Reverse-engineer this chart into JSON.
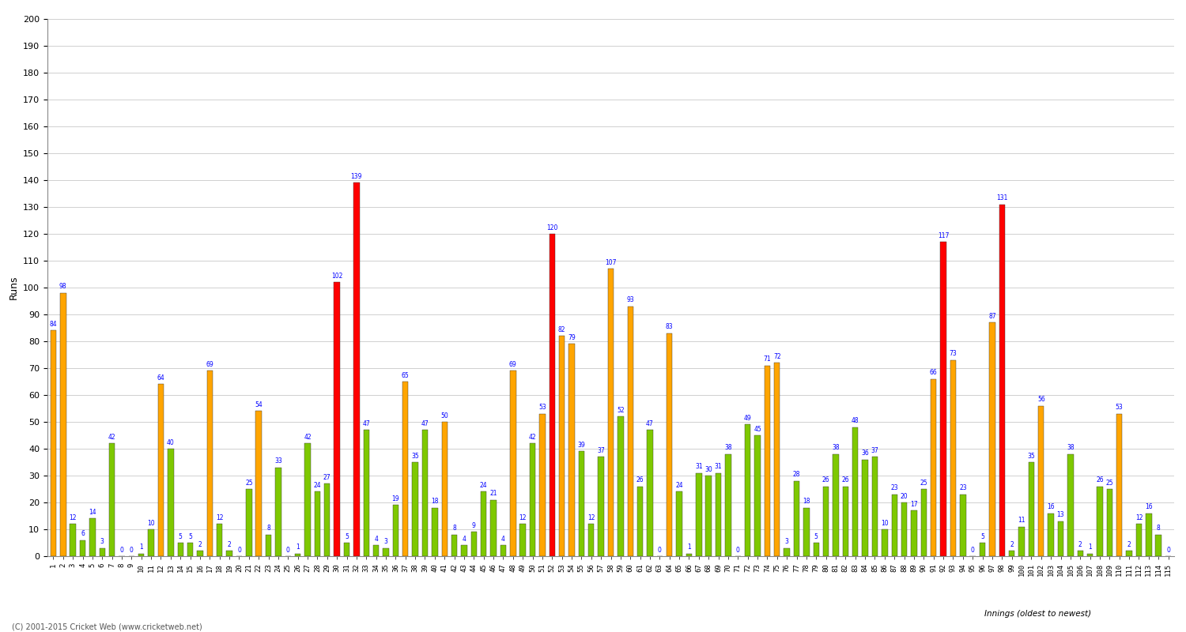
{
  "title": "",
  "xlabel": "Innings (oldest to newest)",
  "ylabel": "Runs",
  "ylim": [
    0,
    200
  ],
  "yticks": [
    0,
    10,
    20,
    30,
    40,
    50,
    60,
    70,
    80,
    90,
    100,
    110,
    120,
    130,
    140,
    150,
    160,
    170,
    180,
    190,
    200
  ],
  "background_color": "#ffffff",
  "grid_color": "#d0d0d0",
  "bar_color_orange": "#ffa500",
  "bar_color_green": "#7ec800",
  "bar_color_red": "#ff0000",
  "innings_data": [
    {
      "inning": 1,
      "runs": 84,
      "color": "orange"
    },
    {
      "inning": 2,
      "runs": 98,
      "color": "orange"
    },
    {
      "inning": 3,
      "runs": 12,
      "color": "green"
    },
    {
      "inning": 4,
      "runs": 6,
      "color": "green"
    },
    {
      "inning": 5,
      "runs": 14,
      "color": "green"
    },
    {
      "inning": 6,
      "runs": 3,
      "color": "green"
    },
    {
      "inning": 7,
      "runs": 42,
      "color": "green"
    },
    {
      "inning": 8,
      "runs": 0,
      "color": "green"
    },
    {
      "inning": 9,
      "runs": 0,
      "color": "green"
    },
    {
      "inning": 10,
      "runs": 1,
      "color": "green"
    },
    {
      "inning": 11,
      "runs": 10,
      "color": "green"
    },
    {
      "inning": 12,
      "runs": 64,
      "color": "orange"
    },
    {
      "inning": 13,
      "runs": 40,
      "color": "green"
    },
    {
      "inning": 14,
      "runs": 5,
      "color": "green"
    },
    {
      "inning": 15,
      "runs": 5,
      "color": "green"
    },
    {
      "inning": 16,
      "runs": 2,
      "color": "green"
    },
    {
      "inning": 17,
      "runs": 69,
      "color": "orange"
    },
    {
      "inning": 18,
      "runs": 12,
      "color": "green"
    },
    {
      "inning": 19,
      "runs": 2,
      "color": "green"
    },
    {
      "inning": 20,
      "runs": 0,
      "color": "green"
    },
    {
      "inning": 21,
      "runs": 25,
      "color": "green"
    },
    {
      "inning": 22,
      "runs": 54,
      "color": "orange"
    },
    {
      "inning": 23,
      "runs": 8,
      "color": "green"
    },
    {
      "inning": 24,
      "runs": 33,
      "color": "green"
    },
    {
      "inning": 25,
      "runs": 0,
      "color": "green"
    },
    {
      "inning": 26,
      "runs": 1,
      "color": "green"
    },
    {
      "inning": 27,
      "runs": 42,
      "color": "green"
    },
    {
      "inning": 28,
      "runs": 24,
      "color": "green"
    },
    {
      "inning": 29,
      "runs": 27,
      "color": "green"
    },
    {
      "inning": 30,
      "runs": 102,
      "color": "red"
    },
    {
      "inning": 31,
      "runs": 5,
      "color": "green"
    },
    {
      "inning": 32,
      "runs": 139,
      "color": "red"
    },
    {
      "inning": 33,
      "runs": 47,
      "color": "green"
    },
    {
      "inning": 34,
      "runs": 4,
      "color": "green"
    },
    {
      "inning": 35,
      "runs": 3,
      "color": "green"
    },
    {
      "inning": 36,
      "runs": 19,
      "color": "green"
    },
    {
      "inning": 37,
      "runs": 65,
      "color": "orange"
    },
    {
      "inning": 38,
      "runs": 35,
      "color": "green"
    },
    {
      "inning": 39,
      "runs": 47,
      "color": "green"
    },
    {
      "inning": 40,
      "runs": 18,
      "color": "green"
    },
    {
      "inning": 41,
      "runs": 50,
      "color": "orange"
    },
    {
      "inning": 42,
      "runs": 8,
      "color": "green"
    },
    {
      "inning": 43,
      "runs": 4,
      "color": "green"
    },
    {
      "inning": 44,
      "runs": 9,
      "color": "green"
    },
    {
      "inning": 45,
      "runs": 24,
      "color": "green"
    },
    {
      "inning": 46,
      "runs": 21,
      "color": "green"
    },
    {
      "inning": 47,
      "runs": 4,
      "color": "green"
    },
    {
      "inning": 48,
      "runs": 69,
      "color": "orange"
    },
    {
      "inning": 49,
      "runs": 12,
      "color": "green"
    },
    {
      "inning": 50,
      "runs": 42,
      "color": "green"
    },
    {
      "inning": 51,
      "runs": 53,
      "color": "orange"
    },
    {
      "inning": 52,
      "runs": 120,
      "color": "red"
    },
    {
      "inning": 53,
      "runs": 82,
      "color": "orange"
    },
    {
      "inning": 54,
      "runs": 79,
      "color": "orange"
    },
    {
      "inning": 55,
      "runs": 39,
      "color": "green"
    },
    {
      "inning": 56,
      "runs": 12,
      "color": "green"
    },
    {
      "inning": 57,
      "runs": 37,
      "color": "green"
    },
    {
      "inning": 58,
      "runs": 107,
      "color": "orange"
    },
    {
      "inning": 59,
      "runs": 52,
      "color": "green"
    },
    {
      "inning": 60,
      "runs": 93,
      "color": "orange"
    },
    {
      "inning": 61,
      "runs": 26,
      "color": "green"
    },
    {
      "inning": 62,
      "runs": 47,
      "color": "green"
    },
    {
      "inning": 63,
      "runs": 0,
      "color": "green"
    },
    {
      "inning": 64,
      "runs": 83,
      "color": "orange"
    },
    {
      "inning": 65,
      "runs": 24,
      "color": "green"
    },
    {
      "inning": 66,
      "runs": 1,
      "color": "green"
    },
    {
      "inning": 67,
      "runs": 31,
      "color": "green"
    },
    {
      "inning": 68,
      "runs": 30,
      "color": "green"
    },
    {
      "inning": 69,
      "runs": 31,
      "color": "green"
    },
    {
      "inning": 70,
      "runs": 38,
      "color": "green"
    },
    {
      "inning": 71,
      "runs": 0,
      "color": "green"
    },
    {
      "inning": 72,
      "runs": 49,
      "color": "green"
    },
    {
      "inning": 73,
      "runs": 45,
      "color": "green"
    },
    {
      "inning": 74,
      "runs": 71,
      "color": "orange"
    },
    {
      "inning": 75,
      "runs": 72,
      "color": "orange"
    },
    {
      "inning": 76,
      "runs": 3,
      "color": "green"
    },
    {
      "inning": 77,
      "runs": 28,
      "color": "green"
    },
    {
      "inning": 78,
      "runs": 18,
      "color": "green"
    },
    {
      "inning": 79,
      "runs": 5,
      "color": "green"
    },
    {
      "inning": 80,
      "runs": 26,
      "color": "green"
    },
    {
      "inning": 81,
      "runs": 38,
      "color": "green"
    },
    {
      "inning": 82,
      "runs": 26,
      "color": "green"
    },
    {
      "inning": 83,
      "runs": 48,
      "color": "green"
    },
    {
      "inning": 84,
      "runs": 36,
      "color": "green"
    },
    {
      "inning": 85,
      "runs": 37,
      "color": "green"
    },
    {
      "inning": 86,
      "runs": 10,
      "color": "green"
    },
    {
      "inning": 87,
      "runs": 23,
      "color": "green"
    },
    {
      "inning": 88,
      "runs": 20,
      "color": "green"
    },
    {
      "inning": 89,
      "runs": 17,
      "color": "green"
    },
    {
      "inning": 90,
      "runs": 25,
      "color": "green"
    },
    {
      "inning": 91,
      "runs": 66,
      "color": "orange"
    },
    {
      "inning": 92,
      "runs": 117,
      "color": "red"
    },
    {
      "inning": 93,
      "runs": 73,
      "color": "orange"
    },
    {
      "inning": 94,
      "runs": 23,
      "color": "green"
    },
    {
      "inning": 95,
      "runs": 0,
      "color": "green"
    },
    {
      "inning": 96,
      "runs": 5,
      "color": "green"
    },
    {
      "inning": 97,
      "runs": 87,
      "color": "orange"
    },
    {
      "inning": 98,
      "runs": 131,
      "color": "red"
    },
    {
      "inning": 99,
      "runs": 2,
      "color": "green"
    },
    {
      "inning": 100,
      "runs": 11,
      "color": "green"
    },
    {
      "inning": 101,
      "runs": 35,
      "color": "green"
    },
    {
      "inning": 102,
      "runs": 56,
      "color": "orange"
    },
    {
      "inning": 103,
      "runs": 16,
      "color": "green"
    },
    {
      "inning": 104,
      "runs": 13,
      "color": "green"
    },
    {
      "inning": 105,
      "runs": 38,
      "color": "green"
    },
    {
      "inning": 106,
      "runs": 2,
      "color": "green"
    },
    {
      "inning": 107,
      "runs": 1,
      "color": "green"
    },
    {
      "inning": 108,
      "runs": 26,
      "color": "green"
    },
    {
      "inning": 109,
      "runs": 25,
      "color": "green"
    },
    {
      "inning": 110,
      "runs": 53,
      "color": "orange"
    },
    {
      "inning": 111,
      "runs": 2,
      "color": "green"
    },
    {
      "inning": 112,
      "runs": 12,
      "color": "green"
    },
    {
      "inning": 113,
      "runs": 16,
      "color": "green"
    },
    {
      "inning": 114,
      "runs": 8,
      "color": "green"
    },
    {
      "inning": 115,
      "runs": 0,
      "color": "green"
    }
  ],
  "footnote": "(C) 2001-2015 Cricket Web (www.cricketweb.net)"
}
